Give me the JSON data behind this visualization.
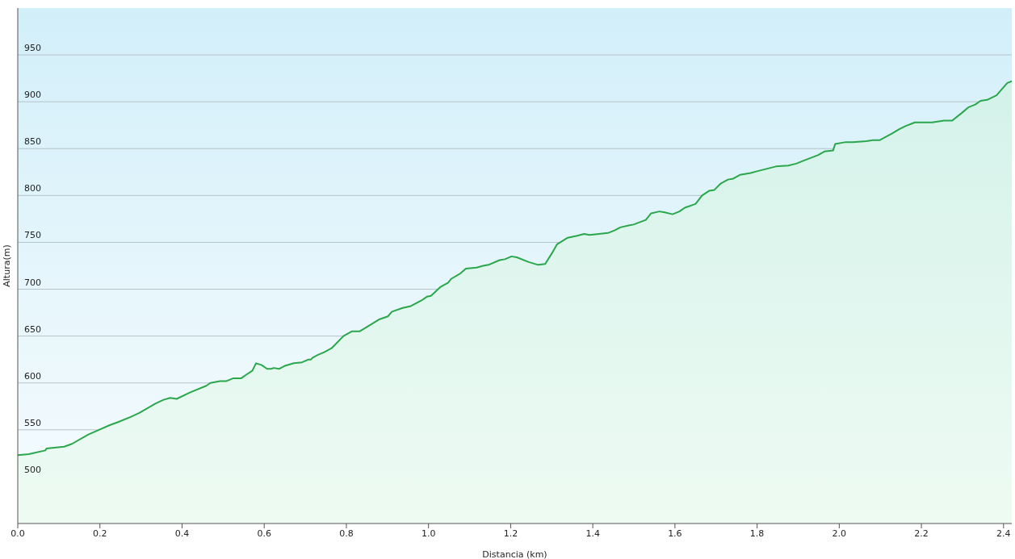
{
  "chart_data": {
    "type": "area",
    "xlabel": "Distancia  (km)",
    "ylabel": "Altura(m)",
    "color": "#2aa64b",
    "grid": "y",
    "xlim": [
      0,
      2.42
    ],
    "ylim": [
      450,
      1000
    ],
    "xticks": [
      {
        "value": 0,
        "label": "0.0"
      },
      0.2,
      0.4,
      0.6,
      0.8,
      {
        "value": 1,
        "label": "1.0"
      },
      1.2,
      1.4,
      1.6,
      1.8,
      {
        "value": 2,
        "label": "2.0"
      },
      2.2,
      2.4
    ],
    "yticks": [
      500,
      550,
      600,
      650,
      700,
      750,
      800,
      850,
      900,
      950
    ],
    "x": [
      0,
      0.027,
      0.067,
      0.07,
      0.113,
      0.132,
      0.172,
      0.198,
      0.224,
      0.243,
      0.276,
      0.296,
      0.335,
      0.355,
      0.371,
      0.387,
      0.42,
      0.459,
      0.469,
      0.492,
      0.508,
      0.525,
      0.544,
      0.557,
      0.571,
      0.58,
      0.594,
      0.607,
      0.617,
      0.623,
      0.636,
      0.649,
      0.672,
      0.692,
      0.708,
      0.714,
      0.718,
      0.731,
      0.747,
      0.764,
      0.793,
      0.813,
      0.832,
      0.862,
      0.881,
      0.901,
      0.911,
      0.937,
      0.957,
      0.983,
      0.996,
      1.006,
      1.028,
      1.048,
      1.055,
      1.078,
      1.091,
      1.117,
      1.133,
      1.146,
      1.173,
      1.186,
      1.202,
      1.215,
      1.244,
      1.267,
      1.284,
      1.3,
      1.313,
      1.339,
      1.362,
      1.379,
      1.392,
      1.415,
      1.437,
      1.454,
      1.467,
      1.487,
      1.499,
      1.529,
      1.542,
      1.562,
      1.575,
      1.594,
      1.611,
      1.624,
      1.65,
      1.666,
      1.683,
      1.696,
      1.712,
      1.729,
      1.742,
      1.758,
      1.784,
      1.801,
      1.846,
      1.876,
      1.895,
      1.912,
      1.948,
      1.964,
      1.985,
      1.99,
      2.016,
      2.033,
      2.066,
      2.082,
      2.098,
      2.128,
      2.147,
      2.161,
      2.184,
      2.226,
      2.255,
      2.275,
      2.298,
      2.314,
      2.331,
      2.344,
      2.36,
      2.383,
      2.409,
      2.42
    ],
    "values": [
      523,
      524,
      528,
      530,
      532,
      535,
      545,
      550,
      555,
      558,
      564,
      568,
      578,
      582,
      584,
      583,
      590,
      597,
      600,
      602,
      602,
      605,
      605,
      609,
      613,
      621,
      619,
      615,
      615,
      616,
      615,
      618,
      621,
      622,
      625,
      625,
      627,
      630,
      633,
      637,
      650,
      655,
      655,
      663,
      668,
      671,
      676,
      680,
      682,
      688,
      692,
      693,
      702,
      707,
      711,
      717,
      722,
      723,
      725,
      726,
      731,
      732,
      735,
      734,
      729,
      726,
      727,
      738,
      748,
      755,
      757,
      759,
      758,
      759,
      760,
      763,
      766,
      768,
      769,
      774,
      781,
      783,
      782,
      780,
      783,
      787,
      791,
      800,
      805,
      806,
      813,
      817,
      818,
      822,
      824,
      826,
      831,
      832,
      834,
      837,
      843,
      847,
      848,
      855,
      857,
      857,
      858,
      859,
      859,
      866,
      871,
      874,
      878,
      878,
      880,
      880,
      888,
      894,
      897,
      901,
      902,
      907,
      920,
      922
    ]
  }
}
